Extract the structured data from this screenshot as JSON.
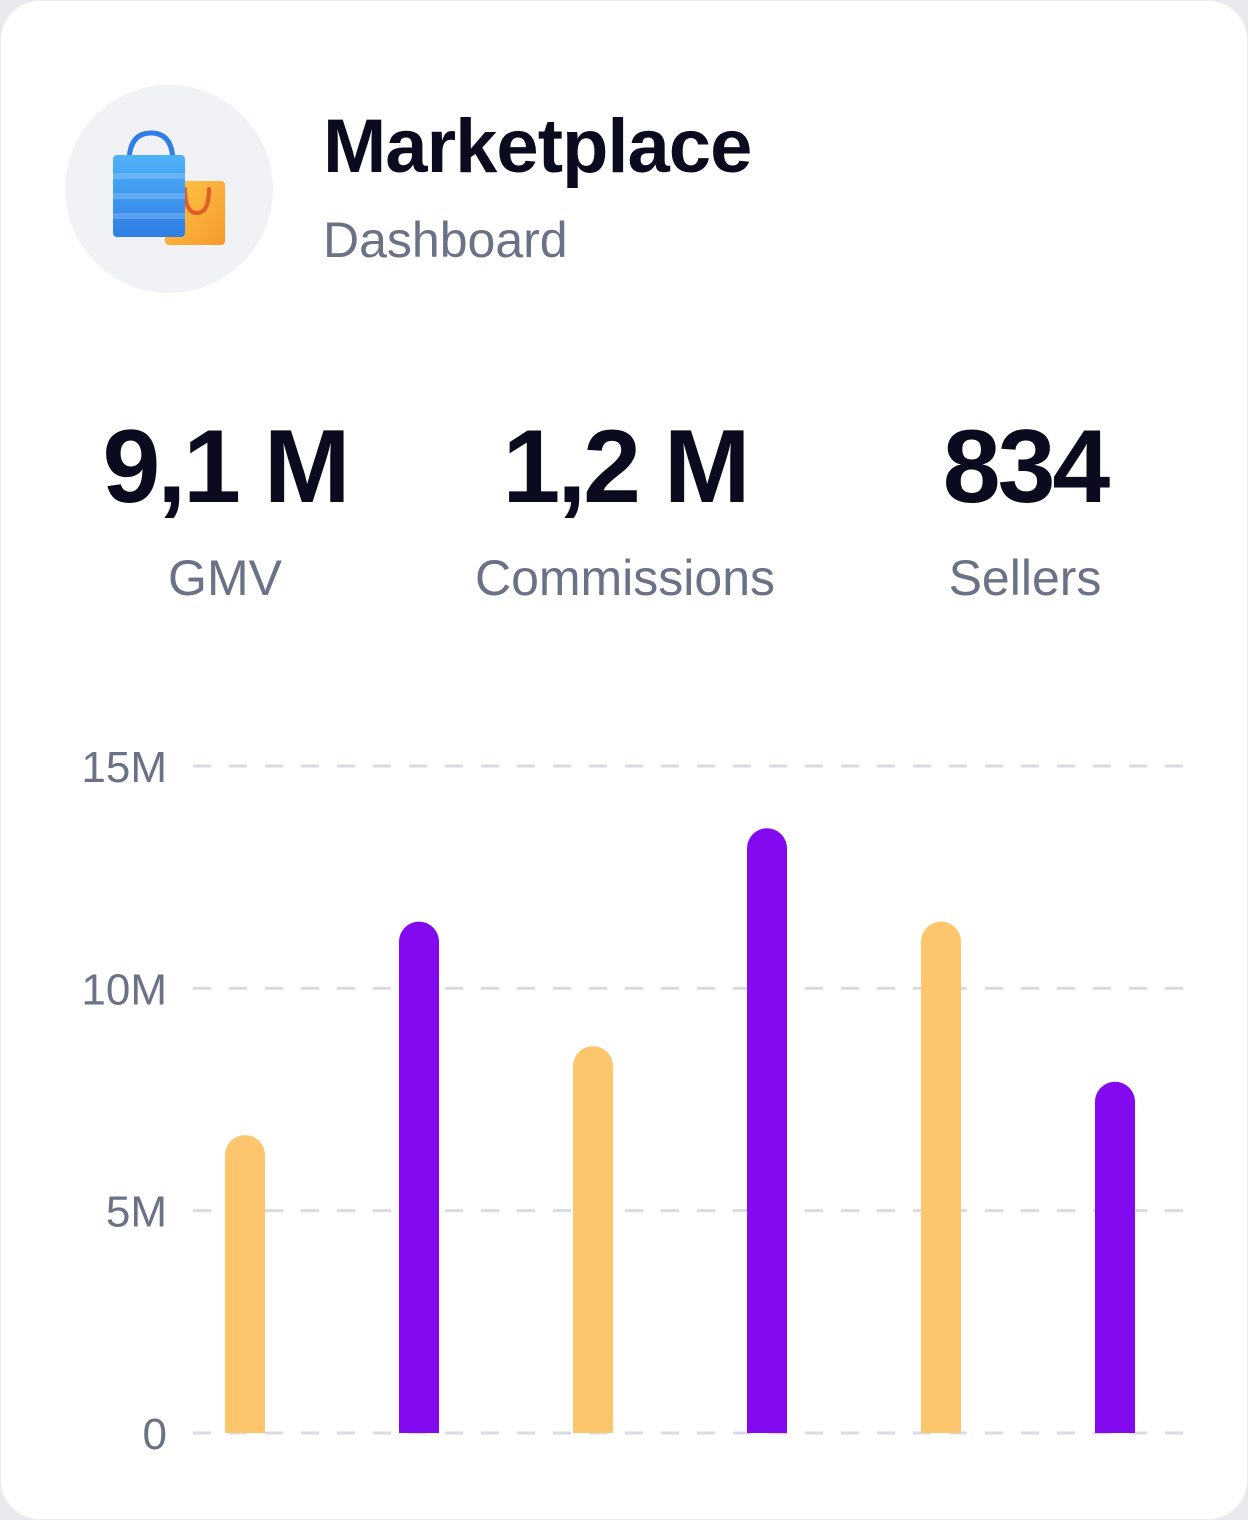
{
  "header": {
    "title": "Marketplace",
    "subtitle": "Dashboard",
    "icon": "shopping-bags-icon"
  },
  "stats": [
    {
      "value": "9,1 M",
      "label": "GMV"
    },
    {
      "value": "1,2 M",
      "label": "Commissions"
    },
    {
      "value": "834",
      "label": "Sellers"
    }
  ],
  "colors": {
    "bar_yellow": "#fdc56c",
    "bar_purple": "#8309ef",
    "grid": "#d9dbe2",
    "text_primary": "#0b0b1f",
    "text_secondary": "#6b7287"
  },
  "chart_data": {
    "type": "bar",
    "ylim": [
      0,
      15000000
    ],
    "y_ticks": [
      {
        "value": 0,
        "label": "0"
      },
      {
        "value": 5000000,
        "label": "5M"
      },
      {
        "value": 10000000,
        "label": "10M"
      },
      {
        "value": 15000000,
        "label": "15M"
      }
    ],
    "values": [
      6700000,
      11500000,
      8700000,
      13600000,
      11500000,
      7900000
    ],
    "bar_colors": [
      "#fdc56c",
      "#8309ef",
      "#fdc56c",
      "#8309ef",
      "#fdc56c",
      "#8309ef"
    ],
    "grid": "dashed-horizontal",
    "legend": "none"
  }
}
